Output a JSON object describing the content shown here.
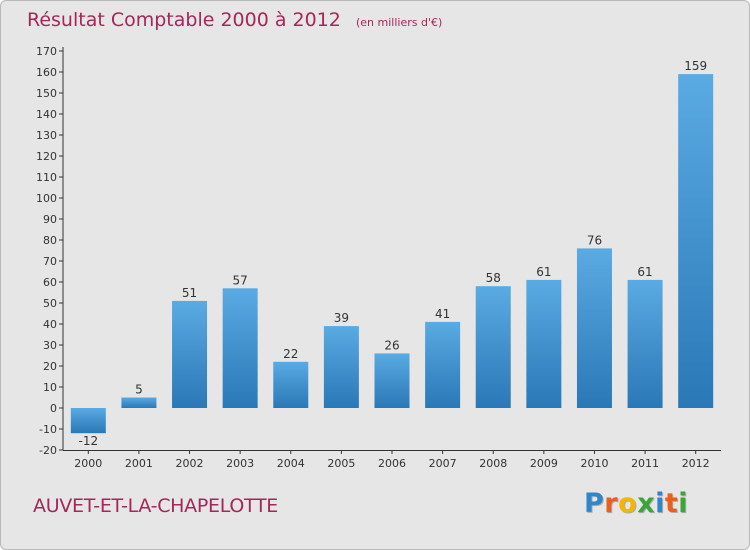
{
  "header": {
    "title": "Résultat Comptable 2000 à 2012",
    "subtitle": "(en milliers d'€)"
  },
  "footer": {
    "commune": "AUVET-ET-LA-CHAPELOTTE",
    "logo_letters": [
      "P",
      "r",
      "o",
      "x",
      "i",
      "t",
      "i"
    ],
    "logo_colors": [
      "#2f86c9",
      "#e8601c",
      "#f2b705",
      "#3aa63a",
      "#2f86c9",
      "#e8601c",
      "#3aa63a"
    ]
  },
  "colors": {
    "bar_top": "#5aaae3",
    "bar_bottom": "#2a78b6",
    "text": "#a7265a",
    "axis": "#333333"
  },
  "chart_data": {
    "type": "bar",
    "title": "Résultat Comptable 2000 à 2012",
    "subtitle": "(en milliers d'€)",
    "categories": [
      "2000",
      "2001",
      "2002",
      "2003",
      "2004",
      "2005",
      "2006",
      "2007",
      "2008",
      "2009",
      "2010",
      "2011",
      "2012"
    ],
    "values": [
      -12,
      5,
      51,
      57,
      22,
      39,
      26,
      41,
      58,
      61,
      76,
      61,
      159
    ],
    "ylim": [
      -20,
      170
    ],
    "yticks": [
      -20,
      -10,
      0,
      10,
      20,
      30,
      40,
      50,
      60,
      70,
      80,
      90,
      100,
      110,
      120,
      130,
      140,
      150,
      160,
      170
    ],
    "xlabel": "",
    "ylabel": "",
    "grid": false,
    "legend": "none"
  }
}
